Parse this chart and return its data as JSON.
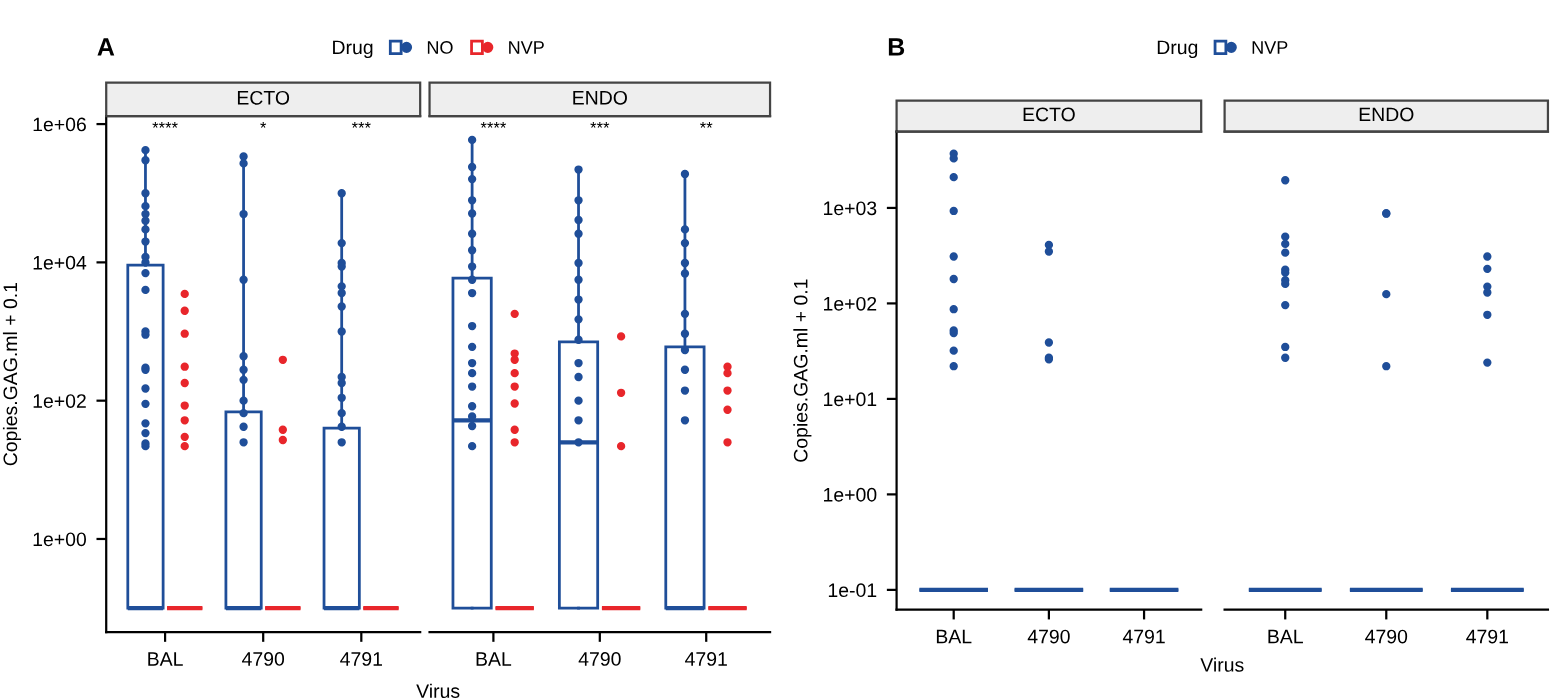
{
  "chart_data": [
    {
      "type": "box",
      "title": "A",
      "subtitle": "ECTO",
      "xlabel": "Virus",
      "ylabel": "Copies.GAG.ml + 0.1",
      "legend_title": "Drug",
      "legend": "top",
      "log": "y",
      "marker": "circle",
      "categories": [
        "BAL",
        "4790",
        "4791"
      ],
      "ylim": [
        0.045,
        1300000
      ],
      "yticks": [
        {
          "value": 1,
          "label": "1e+00"
        },
        {
          "value": 100,
          "label": "1e+02"
        },
        {
          "value": 10000,
          "label": "1e+04"
        },
        {
          "value": 1000000,
          "label": "1e+06"
        }
      ],
      "annotations": [
        "****",
        "*",
        "***"
      ],
      "series": [
        {
          "name": "NO",
          "color": "#1f4e99",
          "boxes": [
            {
              "low": 0.1,
              "q1": 0.1,
              "median": 0.1,
              "q3": 9100,
              "high": 420000,
              "outliers": [
                420000,
                300000,
                100000,
                65000,
                50000,
                40000,
                30000,
                20000,
                12000,
                10000,
                7000,
                4000,
                1000,
                900,
                300,
                280,
                150,
                90,
                47,
                34,
                24,
                22
              ]
            },
            {
              "low": 0.1,
              "q1": 0.1,
              "median": 0.1,
              "q3": 69,
              "high": 340000,
              "outliers": [
                340000,
                270000,
                50000,
                5600,
                440,
                280,
                200,
                100,
                66,
                42,
                25
              ]
            },
            {
              "low": 0.1,
              "q1": 0.1,
              "median": 0.1,
              "q3": 40,
              "high": 100000,
              "outliers": [
                100000,
                19000,
                9800,
                8700,
                4500,
                3600,
                2300,
                1000,
                220,
                180,
                110,
                66,
                42,
                25
              ]
            }
          ]
        },
        {
          "name": "NVP",
          "color": "#e8262b",
          "boxes": [
            {
              "low": 0.1,
              "q1": 0.1,
              "median": 0.1,
              "q3": 0.1,
              "high": 0.1,
              "outliers": [
                3500,
                2000,
                930,
                310,
                180,
                85,
                52,
                30,
                22
              ]
            },
            {
              "low": 0.1,
              "q1": 0.1,
              "median": 0.1,
              "q3": 0.1,
              "high": 0.1,
              "outliers": [
                390,
                38,
                27
              ]
            },
            {
              "low": 0.1,
              "q1": 0.1,
              "median": 0.1,
              "q3": 0.1,
              "high": 0.1
            }
          ]
        }
      ]
    },
    {
      "type": "box",
      "subtitle": "ENDO",
      "log": "y",
      "marker": "circle",
      "tick_labels": "x",
      "categories": [
        "BAL",
        "4790",
        "4791"
      ],
      "ylim": [
        0.045,
        1300000
      ],
      "annotations": [
        "****",
        "***",
        "**"
      ],
      "series": [
        {
          "color": "#1f4e99",
          "boxes": [
            {
              "low": 0.1,
              "q1": 0.1,
              "median": 52,
              "q3": 5900,
              "high": 590000,
              "outliers": [
                590000,
                240000,
                160000,
                79000,
                51000,
                26000,
                15000,
                8700,
                5600,
                3600,
                1200,
                600,
                350,
                250,
                160,
                83,
                59,
                43,
                22
              ]
            },
            {
              "low": 0.1,
              "q1": 0.1,
              "median": 25,
              "q3": 710,
              "high": 220000,
              "outliers": [
                220000,
                79000,
                41000,
                26000,
                9800,
                5600,
                2900,
                1500,
                760,
                350,
                220,
                100,
                52,
                25
              ]
            },
            {
              "low": 0.1,
              "q1": 0.1,
              "median": 0.1,
              "q3": 600,
              "high": 190000,
              "outliers": [
                190000,
                30000,
                19000,
                9800,
                6900,
                1800,
                930,
                540,
                280,
                140,
                52
              ]
            }
          ]
        },
        {
          "color": "#e8262b",
          "boxes": [
            {
              "low": 0.1,
              "q1": 0.1,
              "median": 0.1,
              "q3": 0.1,
              "high": 0.1,
              "outliers": [
                1800,
                480,
                390,
                250,
                160,
                91,
                38,
                25
              ]
            },
            {
              "low": 0.1,
              "q1": 0.1,
              "median": 0.1,
              "q3": 0.1,
              "high": 0.1,
              "outliers": [
                850,
                130,
                22
              ]
            },
            {
              "low": 0.1,
              "q1": 0.1,
              "median": 0.1,
              "q3": 0.1,
              "high": 0.1,
              "outliers": [
                310,
                250,
                140,
                74,
                25
              ]
            }
          ]
        }
      ]
    },
    {
      "type": "box",
      "title": "B",
      "subtitle": "ECTO",
      "xlabel": "Virus",
      "ylabel": "Copies.GAG.ml + 0.1",
      "legend_title": "Drug",
      "legend": "top",
      "log": "y",
      "marker": "circle",
      "categories": [
        "BAL",
        "4790",
        "4791"
      ],
      "ylim": [
        0.062,
        6300
      ],
      "yticks": [
        {
          "value": 0.1,
          "label": "1e-01"
        },
        {
          "value": 1,
          "label": "1e+00"
        },
        {
          "value": 10,
          "label": "1e+01"
        },
        {
          "value": 100,
          "label": "1e+02"
        },
        {
          "value": 1000,
          "label": "1e+03"
        }
      ],
      "series": [
        {
          "name": "NVP",
          "color": "#1f4e99",
          "boxes": [
            {
              "low": 0.1,
              "q1": 0.1,
              "median": 0.1,
              "q3": 0.1,
              "high": 0.1,
              "outliers": [
                3700,
                3300,
                2100,
                930,
                310,
                180,
                87,
                52,
                49,
                32,
                22
              ]
            },
            {
              "low": 0.1,
              "q1": 0.1,
              "median": 0.1,
              "q3": 0.1,
              "high": 0.1,
              "outliers": [
                410,
                350,
                39,
                27,
                26
              ]
            },
            {
              "low": 0.1,
              "q1": 0.1,
              "median": 0.1,
              "q3": 0.1,
              "high": 0.1
            }
          ]
        }
      ]
    },
    {
      "type": "box",
      "subtitle": "ENDO",
      "log": "y",
      "marker": "circle",
      "tick_labels": "x",
      "categories": [
        "BAL",
        "4790",
        "4791"
      ],
      "ylim": [
        0.062,
        6300
      ],
      "series": [
        {
          "color": "#1f4e99",
          "boxes": [
            {
              "low": 0.1,
              "q1": 0.1,
              "median": 0.1,
              "q3": 0.1,
              "high": 0.1,
              "outliers": [
                1950,
                500,
                420,
                340,
                225,
                210,
                175,
                160,
                96,
                35,
                27
              ]
            },
            {
              "low": 0.1,
              "q1": 0.1,
              "median": 0.1,
              "q3": 0.1,
              "high": 0.1,
              "outliers": [
                880,
                870,
                125,
                22
              ]
            },
            {
              "low": 0.1,
              "q1": 0.1,
              "median": 0.1,
              "q3": 0.1,
              "high": 0.1,
              "outliers": [
                310,
                230,
                150,
                130,
                76,
                24
              ]
            }
          ]
        }
      ]
    }
  ]
}
